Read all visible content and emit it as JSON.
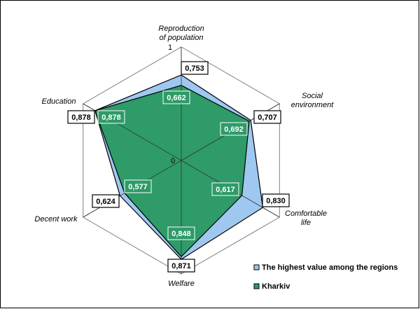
{
  "chart_data": {
    "type": "radar",
    "axes": [
      "Reproduction of population",
      "Social environment",
      "Comfortable life",
      "Welfare",
      "Decent work",
      "Education"
    ],
    "axis_label_lines": [
      [
        "Reproduction",
        "of population"
      ],
      [
        "Social",
        "environment"
      ],
      [
        "Comfortable",
        "life"
      ],
      [
        "Welfare"
      ],
      [
        "Decent work"
      ],
      [
        "Education"
      ]
    ],
    "rlim": [
      0,
      1
    ],
    "tick_labels": [
      "0",
      "1"
    ],
    "grid": true,
    "legend_position": "bottom-right",
    "series": [
      {
        "name": "The highest value among the regions",
        "values": [
          0.753,
          0.707,
          0.83,
          0.871,
          0.624,
          0.878
        ],
        "labels": [
          "0,753",
          "0,707",
          "0,830",
          "0,871",
          "0,624",
          "0,878"
        ],
        "color": "#9fc8f0"
      },
      {
        "name": "Kharkiv",
        "values": [
          0.662,
          0.692,
          0.617,
          0.848,
          0.577,
          0.878
        ],
        "labels": [
          "0,662",
          "0,692",
          "0,617",
          "0,848",
          "0,577",
          "0,878"
        ],
        "color": "#2e9b68"
      }
    ]
  }
}
